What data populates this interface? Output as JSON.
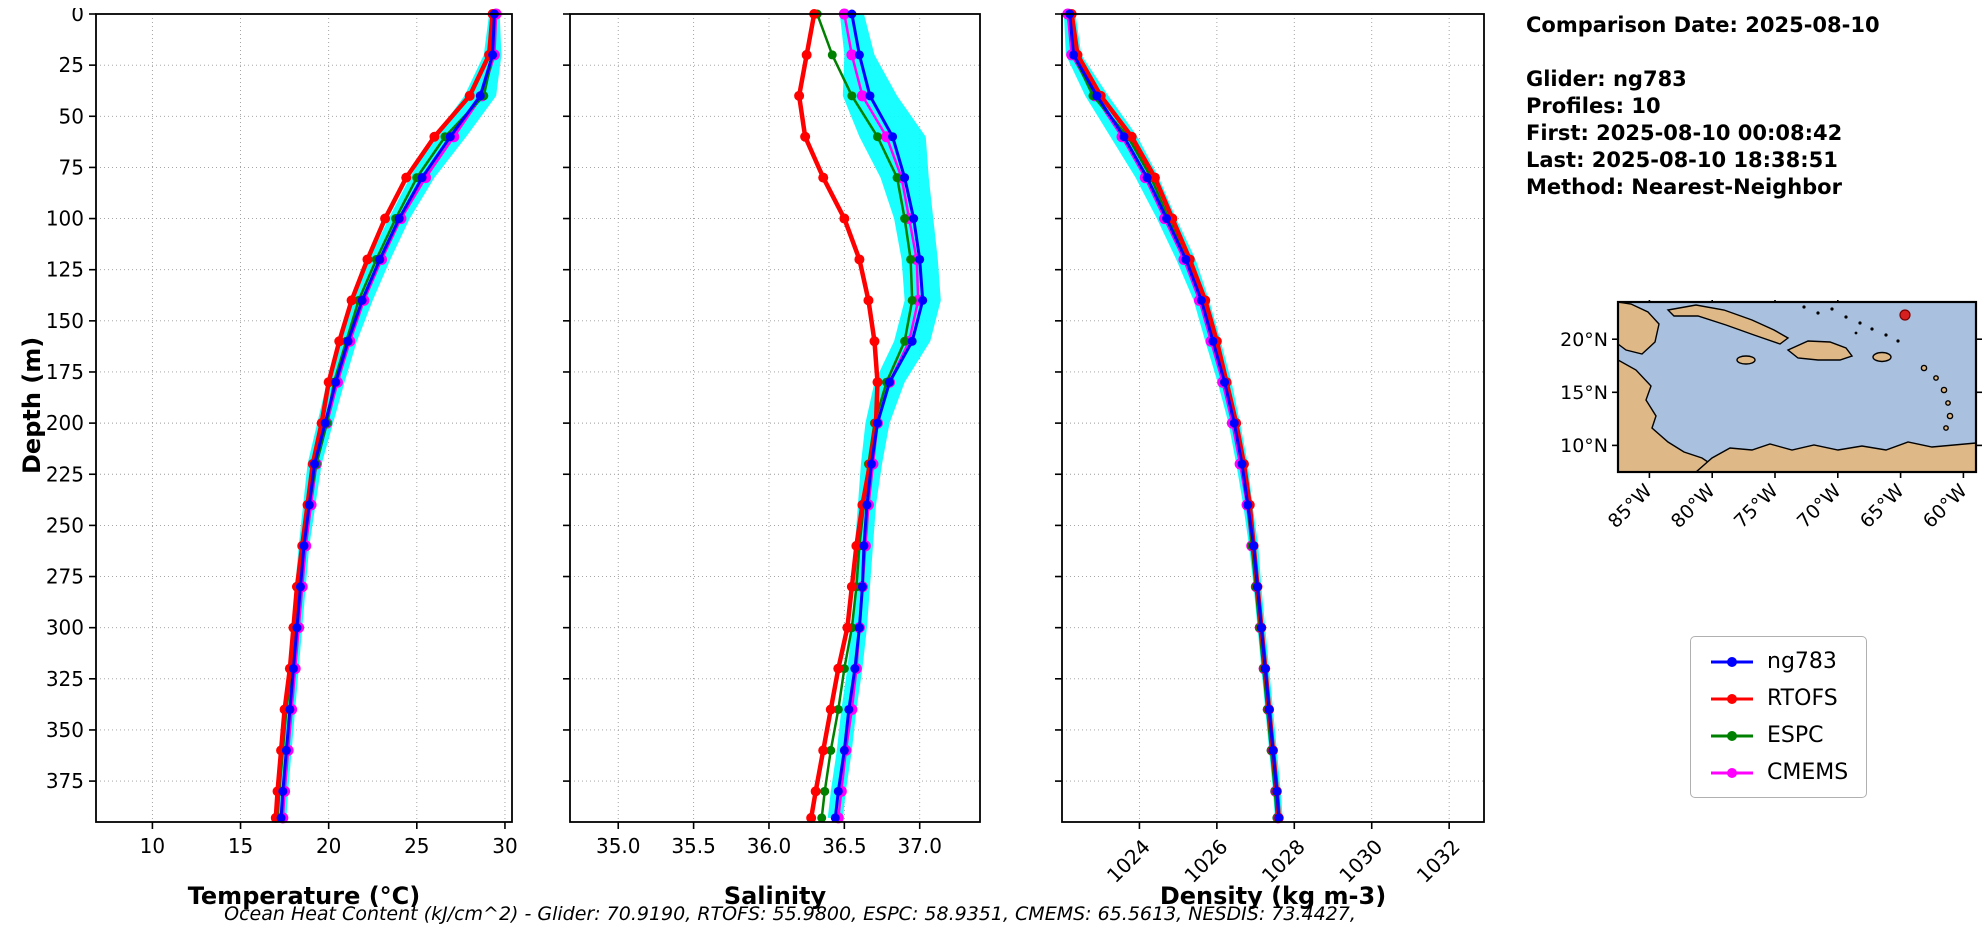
{
  "info_panel": {
    "comparison_date": "Comparison Date: 2025-08-10",
    "glider": "Glider: ng783",
    "profiles": "Profiles: 10",
    "first": "First: 2025-08-10 00:08:42",
    "last": "Last: 2025-08-10 18:38:51",
    "method": "Method: Nearest-Neighbor"
  },
  "axes": {
    "depth_label": "Depth (m)"
  },
  "footer": {
    "ohc_text": "Ocean Heat Content (kJ/cm^2) - Glider: 70.9190,  RTOFS: 55.9800,  ESPC: 58.9351,  CMEMS: 65.5613,  NESDIS: 73.4427,"
  },
  "legend": {
    "entries": [
      {
        "label": "ng783",
        "color": "#0000ff"
      },
      {
        "label": "RTOFS",
        "color": "#ff0000"
      },
      {
        "label": "ESPC",
        "color": "#008000"
      },
      {
        "label": "CMEMS",
        "color": "#ff00ff"
      }
    ]
  },
  "map": {
    "ocean_color": "#a9c1de",
    "land_color": "#deb887",
    "coast_color": "#000000",
    "marker_color": "#d62020",
    "lat_ticks": [
      "20°N",
      "15°N",
      "10°N"
    ],
    "lon_ticks": [
      "85°W",
      "80°W",
      "75°W",
      "70°W",
      "65°W",
      "60°W"
    ]
  },
  "chart_data": [
    {
      "type": "line",
      "orientation": "depth-profile",
      "xlabel": "Temperature (°C)",
      "ylabel": "Depth (m)",
      "xlim": [
        6.8,
        30.4
      ],
      "ylim": [
        0,
        395
      ],
      "grid": true,
      "xticks": [
        10,
        15,
        20,
        25,
        30
      ],
      "xtick_labels": [
        "10",
        "15",
        "20",
        "25",
        "30"
      ],
      "yticks": [
        0,
        25,
        50,
        75,
        100,
        125,
        150,
        175,
        200,
        225,
        250,
        275,
        300,
        325,
        350,
        375
      ],
      "depths": [
        0,
        20,
        40,
        60,
        80,
        100,
        120,
        140,
        160,
        180,
        200,
        220,
        240,
        260,
        280,
        300,
        320,
        340,
        360,
        380,
        393
      ],
      "envelope_color": "#00ffff",
      "glider_spread": [
        0.3,
        0.5,
        0.9,
        0.9,
        0.7,
        0.6,
        0.6,
        0.6,
        0.5,
        0.5,
        0.45,
        0.4,
        0.35,
        0.3,
        0.3,
        0.3,
        0.3,
        0.3,
        0.3,
        0.3,
        0.3
      ],
      "series": [
        {
          "name": "ng783",
          "color": "#0000ff",
          "values": [
            29.4,
            29.3,
            28.6,
            26.9,
            25.3,
            24.0,
            22.9,
            21.9,
            21.1,
            20.4,
            19.8,
            19.2,
            18.9,
            18.6,
            18.4,
            18.2,
            18.0,
            17.8,
            17.6,
            17.4,
            17.3
          ]
        },
        {
          "name": "RTOFS",
          "color": "#ff0000",
          "values": [
            29.3,
            29.1,
            28.0,
            26.0,
            24.4,
            23.2,
            22.2,
            21.3,
            20.6,
            20.0,
            19.6,
            19.1,
            18.8,
            18.5,
            18.2,
            18.0,
            17.8,
            17.5,
            17.3,
            17.1,
            17.0
          ]
        },
        {
          "name": "ESPC",
          "color": "#008000",
          "values": [
            29.4,
            29.3,
            28.8,
            26.6,
            25.0,
            23.8,
            22.7,
            21.7,
            21.0,
            20.3,
            19.9,
            19.3,
            18.9,
            18.6,
            18.3,
            18.1,
            17.9,
            17.6,
            17.4,
            17.2,
            17.1
          ]
        },
        {
          "name": "CMEMS",
          "color": "#ff00ff",
          "values": [
            29.5,
            29.4,
            28.7,
            27.1,
            25.5,
            24.1,
            23.0,
            22.0,
            21.2,
            20.5,
            19.9,
            19.3,
            19.0,
            18.7,
            18.5,
            18.3,
            18.1,
            17.9,
            17.7,
            17.5,
            17.4
          ]
        }
      ]
    },
    {
      "type": "line",
      "orientation": "depth-profile",
      "xlabel": "Salinity",
      "ylabel": "Depth (m)",
      "xlim": [
        34.68,
        37.4
      ],
      "ylim": [
        0,
        395
      ],
      "grid": true,
      "xticks": [
        35.0,
        35.5,
        36.0,
        36.5,
        37.0
      ],
      "xtick_labels": [
        "35.0",
        "35.5",
        "36.0",
        "36.5",
        "37.0"
      ],
      "yticks": [
        0,
        25,
        50,
        75,
        100,
        125,
        150,
        175,
        200,
        225,
        250,
        275,
        300,
        325,
        350,
        375
      ],
      "depths": [
        0,
        20,
        40,
        60,
        80,
        100,
        120,
        140,
        160,
        180,
        200,
        220,
        240,
        260,
        280,
        300,
        320,
        340,
        360,
        380,
        393
      ],
      "envelope_color": "#00ffff",
      "glider_spread": [
        0.08,
        0.1,
        0.18,
        0.22,
        0.16,
        0.13,
        0.12,
        0.12,
        0.12,
        0.1,
        0.08,
        0.07,
        0.06,
        0.06,
        0.05,
        0.05,
        0.05,
        0.05,
        0.05,
        0.05,
        0.05
      ],
      "series": [
        {
          "name": "ng783",
          "color": "#0000ff",
          "values": [
            36.55,
            36.6,
            36.67,
            36.82,
            36.9,
            36.96,
            37.0,
            37.02,
            36.95,
            36.8,
            36.72,
            36.68,
            36.65,
            36.63,
            36.62,
            36.6,
            36.57,
            36.53,
            36.5,
            36.46,
            36.44
          ]
        },
        {
          "name": "RTOFS",
          "color": "#ff0000",
          "values": [
            36.3,
            36.25,
            36.2,
            36.24,
            36.36,
            36.5,
            36.6,
            36.66,
            36.7,
            36.72,
            36.71,
            36.67,
            36.62,
            36.58,
            36.55,
            36.52,
            36.46,
            36.41,
            36.36,
            36.31,
            36.28
          ]
        },
        {
          "name": "ESPC",
          "color": "#008000",
          "values": [
            36.32,
            36.42,
            36.55,
            36.72,
            36.85,
            36.9,
            36.94,
            36.95,
            36.9,
            36.78,
            36.7,
            36.66,
            36.63,
            36.6,
            36.58,
            36.55,
            36.5,
            36.46,
            36.41,
            36.37,
            36.35
          ]
        },
        {
          "name": "CMEMS",
          "color": "#ff00ff",
          "values": [
            36.5,
            36.55,
            36.62,
            36.78,
            36.88,
            36.93,
            36.98,
            36.99,
            36.93,
            36.8,
            36.72,
            36.69,
            36.66,
            36.64,
            36.62,
            36.6,
            36.58,
            36.55,
            36.51,
            36.48,
            36.46
          ]
        }
      ]
    },
    {
      "type": "line",
      "orientation": "depth-profile",
      "xlabel": "Density (kg m-3)",
      "ylabel": "Depth (m)",
      "xlim": [
        1022.0,
        1032.9
      ],
      "ylim": [
        0,
        395
      ],
      "grid": true,
      "xticks": [
        1024,
        1026,
        1028,
        1030,
        1032
      ],
      "xtick_labels": [
        "1024",
        "1026",
        "1028",
        "1030",
        "1032"
      ],
      "xtick_rotation": -45,
      "yticks": [
        0,
        25,
        50,
        75,
        100,
        125,
        150,
        175,
        200,
        225,
        250,
        275,
        300,
        325,
        350,
        375
      ],
      "depths": [
        0,
        20,
        40,
        60,
        80,
        100,
        120,
        140,
        160,
        180,
        200,
        220,
        240,
        260,
        280,
        300,
        320,
        340,
        360,
        380,
        393
      ],
      "envelope_color": "#00ffff",
      "glider_spread": [
        0.15,
        0.2,
        0.3,
        0.35,
        0.3,
        0.25,
        0.25,
        0.2,
        0.2,
        0.18,
        0.15,
        0.15,
        0.12,
        0.12,
        0.1,
        0.1,
        0.1,
        0.1,
        0.1,
        0.1,
        0.1
      ],
      "series": [
        {
          "name": "ng783",
          "color": "#0000ff",
          "values": [
            1022.2,
            1022.3,
            1022.9,
            1023.6,
            1024.2,
            1024.7,
            1025.2,
            1025.6,
            1025.9,
            1026.2,
            1026.45,
            1026.65,
            1026.8,
            1026.95,
            1027.05,
            1027.15,
            1027.25,
            1027.35,
            1027.45,
            1027.55,
            1027.6
          ]
        },
        {
          "name": "RTOFS",
          "color": "#ff0000",
          "values": [
            1022.25,
            1022.4,
            1023.0,
            1023.8,
            1024.4,
            1024.85,
            1025.3,
            1025.7,
            1026.0,
            1026.25,
            1026.5,
            1026.7,
            1026.85,
            1026.95,
            1027.05,
            1027.15,
            1027.25,
            1027.35,
            1027.45,
            1027.55,
            1027.6
          ]
        },
        {
          "name": "ESPC",
          "color": "#008000",
          "values": [
            1022.2,
            1022.3,
            1022.8,
            1023.7,
            1024.3,
            1024.75,
            1025.25,
            1025.65,
            1025.95,
            1026.2,
            1026.45,
            1026.65,
            1026.8,
            1026.9,
            1027.0,
            1027.1,
            1027.2,
            1027.3,
            1027.4,
            1027.5,
            1027.55
          ]
        },
        {
          "name": "CMEMS",
          "color": "#ff00ff",
          "values": [
            1022.15,
            1022.25,
            1022.85,
            1023.55,
            1024.15,
            1024.65,
            1025.15,
            1025.55,
            1025.85,
            1026.15,
            1026.4,
            1026.6,
            1026.78,
            1026.9,
            1027.02,
            1027.12,
            1027.22,
            1027.33,
            1027.43,
            1027.52,
            1027.58
          ]
        }
      ]
    }
  ]
}
